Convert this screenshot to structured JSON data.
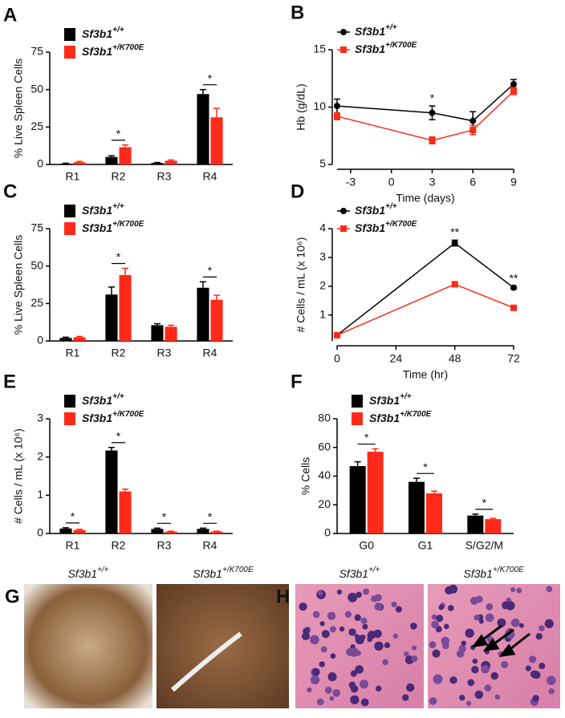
{
  "chart_data": [
    {
      "type": "bar",
      "panel": "A",
      "y_label": "% Live Spleen Cells",
      "categories": [
        "R1",
        "R2",
        "R3",
        "R4"
      ],
      "ylim": [
        0,
        75
      ],
      "yticks": [
        0,
        25,
        50,
        75
      ],
      "series": [
        {
          "name": "Sf3b1+/+",
          "color": "#000000",
          "values": [
            0.5,
            5,
            1,
            47
          ],
          "errors": [
            0.3,
            0.8,
            0.3,
            3
          ]
        },
        {
          "name": "Sf3b1+/K700E",
          "color": "#ff2a1a",
          "values": [
            1.5,
            11.5,
            2.5,
            31.5
          ],
          "errors": [
            0.5,
            1.5,
            0.5,
            6
          ]
        }
      ],
      "annotations": [
        {
          "text": "*",
          "category": "R2"
        },
        {
          "text": "*",
          "category": "R4"
        }
      ]
    },
    {
      "type": "line",
      "panel": "B",
      "y_label": "Hb (g/dL)",
      "x_label": "Time (days)",
      "x": [
        -4,
        3,
        6,
        9
      ],
      "xlim": [
        -4,
        9
      ],
      "xticks": [
        -3,
        0,
        3,
        6,
        9
      ],
      "ylim": [
        5,
        15
      ],
      "yticks": [
        5,
        10,
        15
      ],
      "series": [
        {
          "name": "Sf3b1+/+",
          "color": "#000000",
          "marker": "circle",
          "values": [
            10.1,
            9.5,
            8.8,
            12
          ],
          "errors": [
            0.6,
            0.6,
            0.8,
            0.4
          ]
        },
        {
          "name": "Sf3b1+/K700E",
          "color": "#ff2a1a",
          "marker": "square",
          "values": [
            9.2,
            7.1,
            8,
            11.4
          ],
          "errors": [
            0.3,
            0.3,
            0.4,
            0.3
          ]
        }
      ],
      "annotations": [
        {
          "text": "*",
          "x": 3
        }
      ]
    },
    {
      "type": "bar",
      "panel": "C",
      "y_label": "% Live Spleen Cells",
      "categories": [
        "R1",
        "R2",
        "R3",
        "R4"
      ],
      "ylim": [
        0,
        75
      ],
      "yticks": [
        0,
        25,
        50,
        75
      ],
      "series": [
        {
          "name": "Sf3b1+/+",
          "color": "#000000",
          "values": [
            2,
            31,
            10.5,
            35.5
          ],
          "errors": [
            0.5,
            5,
            1,
            4
          ]
        },
        {
          "name": "Sf3b1+/K700E",
          "color": "#ff2a1a",
          "values": [
            2.5,
            44,
            9.5,
            27.5
          ],
          "errors": [
            0.5,
            4.5,
            1,
            3
          ]
        }
      ],
      "annotations": [
        {
          "text": "*",
          "category": "R2"
        },
        {
          "text": "*",
          "category": "R4"
        }
      ]
    },
    {
      "type": "line",
      "panel": "D",
      "y_label": "# Cells / mL  (x 10⁶)",
      "x_label": "Time (hr)",
      "x": [
        0,
        48,
        72
      ],
      "xlim": [
        0,
        72
      ],
      "xticks": [
        0,
        24,
        48,
        72
      ],
      "ylim": [
        0.1,
        4
      ],
      "yticks": [
        1,
        2,
        3,
        4
      ],
      "series": [
        {
          "name": "Sf3b1+/+",
          "color": "#000000",
          "marker": "circle",
          "values": [
            0.3,
            3.5,
            1.95
          ],
          "errors": [
            0.03,
            0.1,
            0.05
          ]
        },
        {
          "name": "Sf3b1+/K700E",
          "color": "#ff2a1a",
          "marker": "square",
          "values": [
            0.3,
            2.07,
            1.25
          ],
          "errors": [
            0.03,
            0.05,
            0.04
          ]
        }
      ],
      "annotations": [
        {
          "text": "**",
          "x": 48
        },
        {
          "text": "**",
          "x": 72
        }
      ]
    },
    {
      "type": "bar",
      "panel": "E",
      "y_label": "# Cells / mL  (x 10⁶)",
      "categories": [
        "R1",
        "R2",
        "R3",
        "R4"
      ],
      "ylim": [
        0,
        3
      ],
      "yticks": [
        0,
        1,
        2,
        3
      ],
      "series": [
        {
          "name": "Sf3b1+/+",
          "color": "#000000",
          "values": [
            0.13,
            2.17,
            0.12,
            0.12
          ],
          "errors": [
            0.02,
            0.08,
            0.02,
            0.02
          ]
        },
        {
          "name": "Sf3b1+/K700E",
          "color": "#ff2a1a",
          "values": [
            0.09,
            1.1,
            0.05,
            0.05
          ],
          "errors": [
            0.02,
            0.06,
            0.01,
            0.01
          ]
        }
      ],
      "annotations": [
        {
          "text": "*",
          "category": "R1"
        },
        {
          "text": "*",
          "category": "R2"
        },
        {
          "text": "*",
          "category": "R3"
        },
        {
          "text": "*",
          "category": "R4"
        }
      ]
    },
    {
      "type": "bar",
      "panel": "F",
      "y_label": "% Cells",
      "categories": [
        "G0",
        "G1",
        "S/G2/M"
      ],
      "ylim": [
        0,
        80
      ],
      "yticks": [
        0,
        20,
        40,
        60,
        80
      ],
      "series": [
        {
          "name": "Sf3b1+/+",
          "color": "#000000",
          "values": [
            47,
            36,
            12.5
          ],
          "errors": [
            3,
            2.5,
            1
          ]
        },
        {
          "name": "Sf3b1+/K700E",
          "color": "#ff2a1a",
          "values": [
            57,
            28,
            10
          ],
          "errors": [
            2,
            1.5,
            0.5
          ]
        }
      ],
      "annotations": [
        {
          "text": "*",
          "category": "G0"
        },
        {
          "text": "*",
          "category": "G1"
        },
        {
          "text": "*",
          "category": "S/G2/M"
        }
      ]
    }
  ],
  "images": [
    {
      "panel": "G",
      "captions": [
        "Sf3b1+/+",
        "Sf3b1+/K700E"
      ]
    },
    {
      "panel": "H",
      "captions": [
        "Sf3b1+/+",
        "Sf3b1+/K700E"
      ]
    }
  ]
}
